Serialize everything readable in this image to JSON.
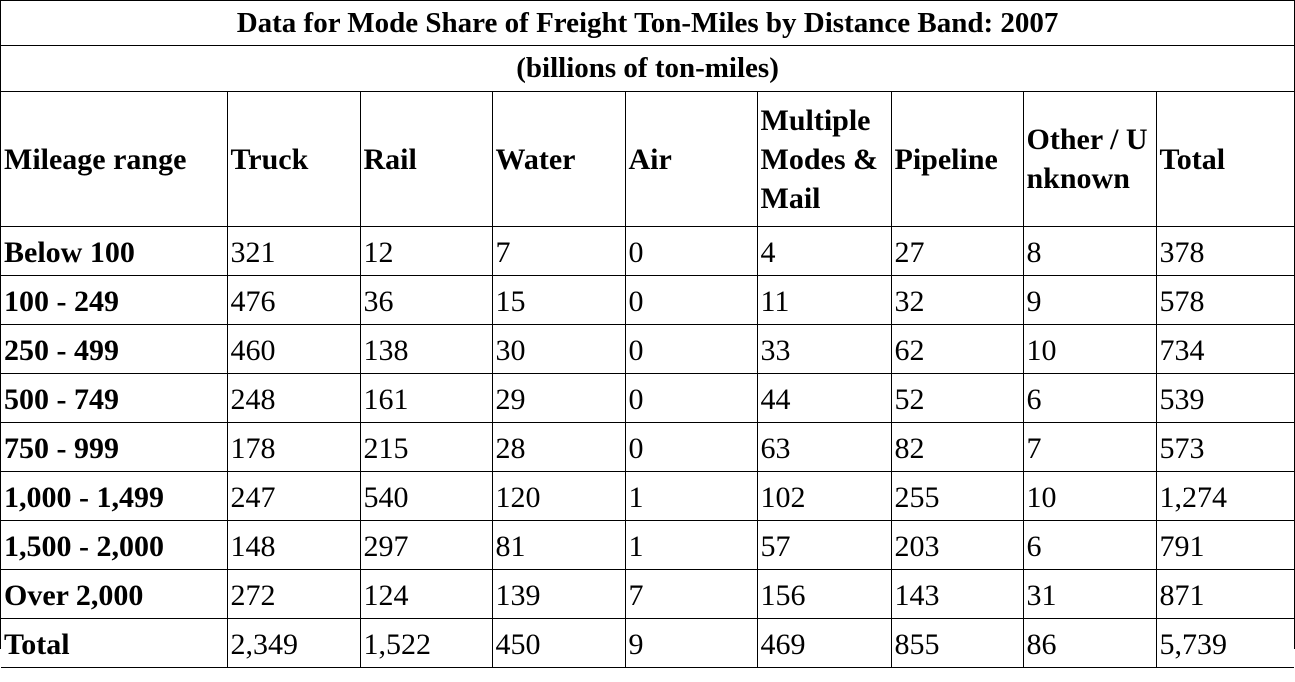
{
  "chart_data": {
    "type": "table",
    "title": "Data for Mode Share of Freight Ton-Miles by Distance Band: 2007",
    "subtitle": "(billions of ton-miles)",
    "columns": [
      "Mileage range",
      "Truck",
      "Rail",
      "Water",
      "Air",
      "Multiple Modes & Mail",
      "Pipeline",
      "Other / Unknown",
      "Total"
    ],
    "rows": [
      {
        "label": "Below 100",
        "values": [
          "321",
          "12",
          "7",
          "0",
          "4",
          "27",
          "8",
          "378"
        ]
      },
      {
        "label": "100 - 249",
        "values": [
          "476",
          "36",
          "15",
          "0",
          "11",
          "32",
          "9",
          "578"
        ]
      },
      {
        "label": "250 - 499",
        "values": [
          "460",
          "138",
          "30",
          "0",
          "33",
          "62",
          "10",
          "734"
        ]
      },
      {
        "label": "500 - 749",
        "values": [
          "248",
          "161",
          "29",
          "0",
          "44",
          "52",
          "6",
          "539"
        ]
      },
      {
        "label": "750 - 999",
        "values": [
          "178",
          "215",
          "28",
          "0",
          "63",
          "82",
          "7",
          "573"
        ]
      },
      {
        "label": "1,000 - 1,499",
        "values": [
          "247",
          "540",
          "120",
          "1",
          "102",
          "255",
          "10",
          "1,274"
        ]
      },
      {
        "label": "1,500 - 2,000",
        "values": [
          "148",
          "297",
          "81",
          "1",
          "57",
          "203",
          "6",
          "791"
        ]
      },
      {
        "label": "Over 2,000",
        "values": [
          "272",
          "124",
          "139",
          "7",
          "156",
          "143",
          "31",
          "871"
        ]
      },
      {
        "label": "Total",
        "values": [
          "2,349",
          "1,522",
          "450",
          "9",
          "469",
          "855",
          "86",
          "5,739"
        ]
      }
    ]
  }
}
